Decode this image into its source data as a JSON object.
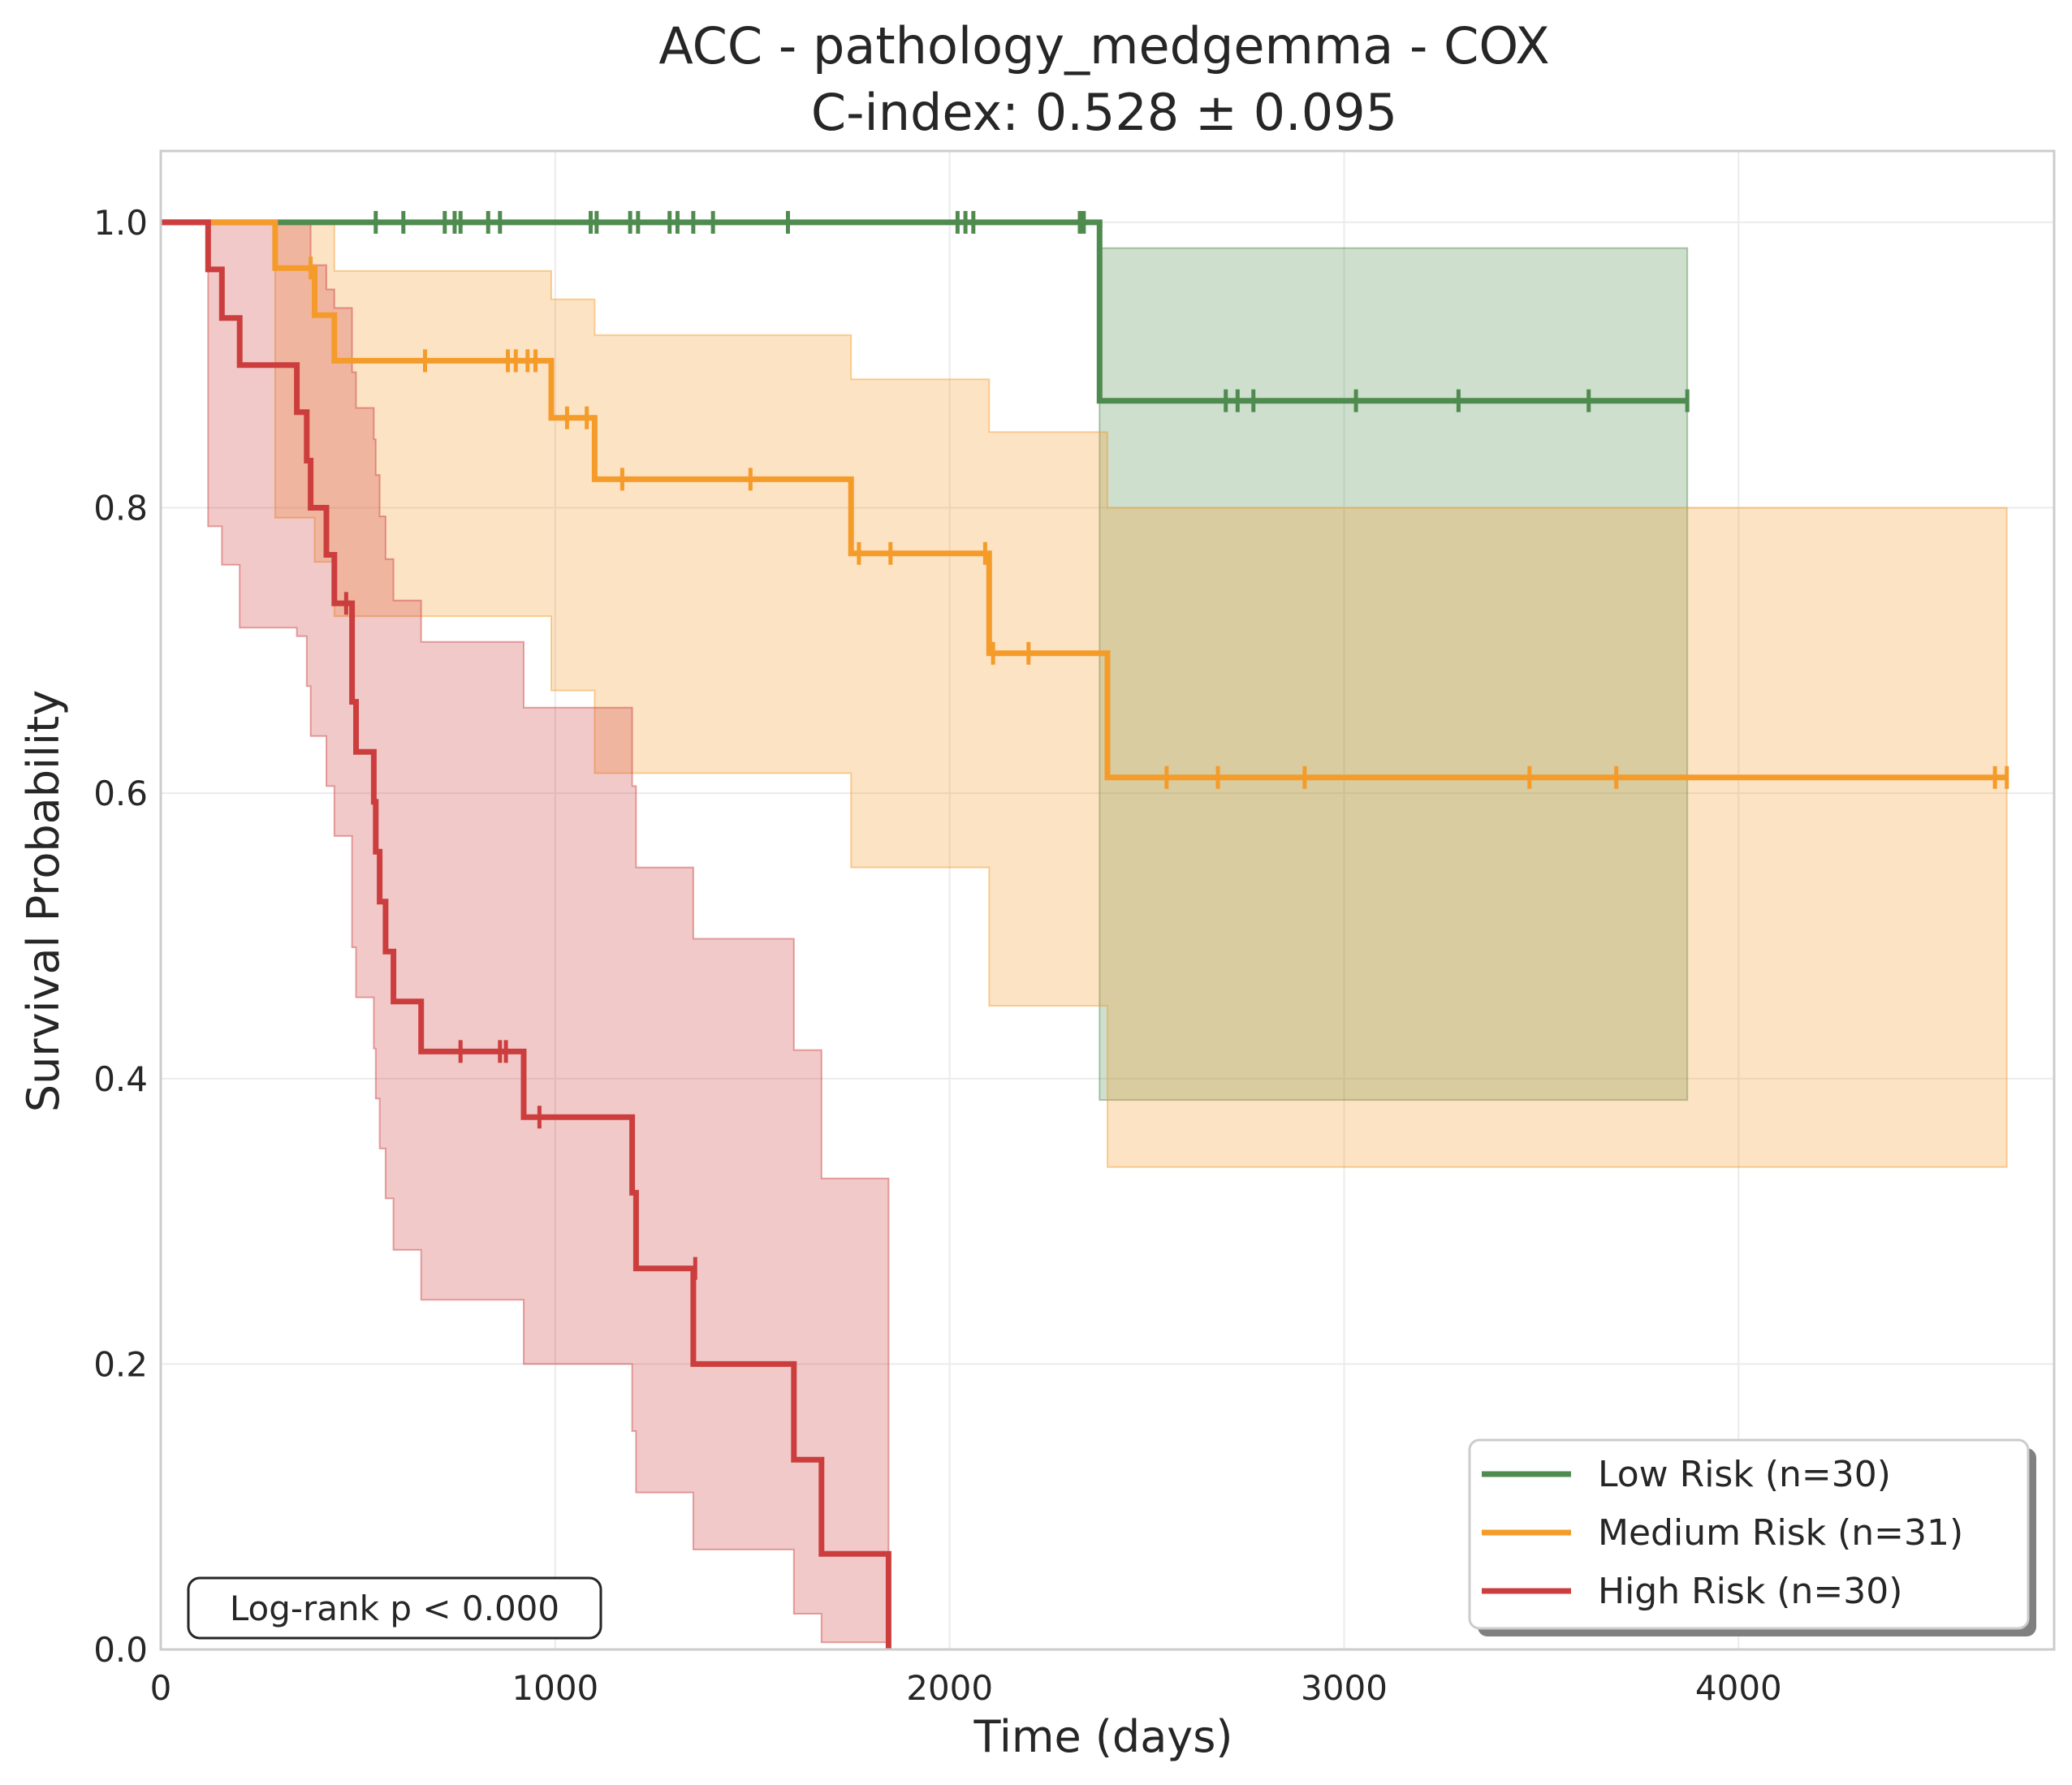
{
  "chart_data": {
    "type": "line",
    "subtype": "kaplan-meier",
    "title": "ACC - pathology_medgemma - COX",
    "subtitle": "C-index: 0.528 ± 0.095",
    "xlabel": "Time (days)",
    "ylabel": "Survival Probability",
    "xlim": [
      0,
      4800
    ],
    "ylim": [
      0,
      1.05
    ],
    "xticks": [
      0,
      1000,
      2000,
      3000,
      4000
    ],
    "xtick_labels": [
      "0",
      "1000",
      "2000",
      "3000",
      "4000"
    ],
    "yticks": [
      0.0,
      0.2,
      0.4,
      0.6,
      0.8,
      1.0
    ],
    "ytick_labels": [
      "0.0",
      "0.2",
      "0.4",
      "0.6",
      "0.8",
      "1.0"
    ],
    "grid": true,
    "legend_position": "lower-right",
    "annotation": "Log-rank p < 0.000",
    "series": [
      {
        "name": "Low Risk (n=30)",
        "color": "#4f8b4f",
        "steps": [
          [
            0,
            1.0
          ],
          [
            2380,
            1.0
          ],
          [
            2380,
            0.875
          ],
          [
            3870,
            0.875
          ]
        ],
        "ci_steps": [
          [
            2380,
            0.385,
            0.982
          ],
          [
            3870,
            0.385,
            0.982
          ]
        ],
        "censored": [
          [
            545,
            1.0
          ],
          [
            615,
            1.0
          ],
          [
            720,
            1.0
          ],
          [
            745,
            1.0
          ],
          [
            760,
            1.0
          ],
          [
            830,
            1.0
          ],
          [
            860,
            1.0
          ],
          [
            1090,
            1.0
          ],
          [
            1105,
            1.0
          ],
          [
            1190,
            1.0
          ],
          [
            1210,
            1.0
          ],
          [
            1290,
            1.0
          ],
          [
            1310,
            1.0
          ],
          [
            1350,
            1.0
          ],
          [
            1400,
            1.0
          ],
          [
            1590,
            1.0
          ],
          [
            2020,
            1.0
          ],
          [
            2040,
            1.0
          ],
          [
            2060,
            1.0
          ],
          [
            2330,
            1.0
          ],
          [
            2340,
            1.0
          ],
          [
            2700,
            0.875
          ],
          [
            2730,
            0.875
          ],
          [
            2770,
            0.875
          ],
          [
            3030,
            0.875
          ],
          [
            3290,
            0.875
          ],
          [
            3620,
            0.875
          ],
          [
            3870,
            0.875
          ]
        ]
      },
      {
        "name": "Medium Risk (n=31)",
        "color": "#f59b2a",
        "steps": [
          [
            0,
            1.0
          ],
          [
            290,
            1.0
          ],
          [
            290,
            0.968
          ],
          [
            390,
            0.968
          ],
          [
            390,
            0.935
          ],
          [
            440,
            0.935
          ],
          [
            440,
            0.903
          ],
          [
            990,
            0.903
          ],
          [
            990,
            0.863
          ],
          [
            1100,
            0.863
          ],
          [
            1100,
            0.82
          ],
          [
            1750,
            0.82
          ],
          [
            1750,
            0.768
          ],
          [
            2100,
            0.768
          ],
          [
            2100,
            0.698
          ],
          [
            2400,
            0.698
          ],
          [
            2400,
            0.611
          ],
          [
            4680,
            0.611
          ]
        ],
        "ci_steps": [
          [
            290,
            0.793,
            1.0
          ],
          [
            390,
            0.762,
            1.0
          ],
          [
            440,
            0.724,
            0.966
          ],
          [
            990,
            0.672,
            0.946
          ],
          [
            1100,
            0.614,
            0.921
          ],
          [
            1750,
            0.548,
            0.89
          ],
          [
            2100,
            0.451,
            0.853
          ],
          [
            2400,
            0.338,
            0.8
          ],
          [
            4680,
            0.338,
            0.8
          ]
        ],
        "censored": [
          [
            380,
            0.968
          ],
          [
            670,
            0.903
          ],
          [
            880,
            0.903
          ],
          [
            900,
            0.903
          ],
          [
            930,
            0.903
          ],
          [
            950,
            0.903
          ],
          [
            1030,
            0.863
          ],
          [
            1080,
            0.863
          ],
          [
            1170,
            0.82
          ],
          [
            1495,
            0.82
          ],
          [
            1770,
            0.768
          ],
          [
            1850,
            0.768
          ],
          [
            2090,
            0.768
          ],
          [
            2110,
            0.698
          ],
          [
            2200,
            0.698
          ],
          [
            2550,
            0.611
          ],
          [
            2680,
            0.611
          ],
          [
            2900,
            0.611
          ],
          [
            3470,
            0.611
          ],
          [
            3690,
            0.611
          ],
          [
            4650,
            0.611
          ],
          [
            4680,
            0.611
          ]
        ]
      },
      {
        "name": "High Risk (n=30)",
        "color": "#cc3e3e",
        "steps": [
          [
            0,
            1.0
          ],
          [
            120,
            1.0
          ],
          [
            120,
            0.967
          ],
          [
            155,
            0.967
          ],
          [
            155,
            0.933
          ],
          [
            200,
            0.933
          ],
          [
            200,
            0.9
          ],
          [
            345,
            0.9
          ],
          [
            345,
            0.867
          ],
          [
            370,
            0.867
          ],
          [
            370,
            0.833
          ],
          [
            380,
            0.833
          ],
          [
            380,
            0.8
          ],
          [
            420,
            0.8
          ],
          [
            420,
            0.767
          ],
          [
            440,
            0.767
          ],
          [
            440,
            0.733
          ],
          [
            485,
            0.733
          ],
          [
            485,
            0.664
          ],
          [
            495,
            0.664
          ],
          [
            495,
            0.629
          ],
          [
            540,
            0.629
          ],
          [
            540,
            0.594
          ],
          [
            545,
            0.594
          ],
          [
            545,
            0.559
          ],
          [
            555,
            0.559
          ],
          [
            555,
            0.524
          ],
          [
            570,
            0.524
          ],
          [
            570,
            0.489
          ],
          [
            590,
            0.489
          ],
          [
            590,
            0.454
          ],
          [
            660,
            0.454
          ],
          [
            660,
            0.419
          ],
          [
            920,
            0.419
          ],
          [
            920,
            0.373
          ],
          [
            1195,
            0.373
          ],
          [
            1195,
            0.32
          ],
          [
            1205,
            0.32
          ],
          [
            1205,
            0.267
          ],
          [
            1350,
            0.267
          ],
          [
            1350,
            0.2
          ],
          [
            1605,
            0.2
          ],
          [
            1605,
            0.133
          ],
          [
            1675,
            0.133
          ],
          [
            1675,
            0.067
          ],
          [
            1845,
            0.067
          ],
          [
            1845,
            0.0
          ]
        ],
        "ci_steps": [
          [
            120,
            0.787,
            1.0
          ],
          [
            155,
            0.76,
            1.0
          ],
          [
            200,
            0.716,
            1.0
          ],
          [
            345,
            0.71,
            1.0
          ],
          [
            370,
            0.675,
            1.0
          ],
          [
            380,
            0.64,
            0.97
          ],
          [
            420,
            0.605,
            0.953
          ],
          [
            440,
            0.57,
            0.94
          ],
          [
            485,
            0.492,
            0.895
          ],
          [
            495,
            0.457,
            0.87
          ],
          [
            540,
            0.421,
            0.848
          ],
          [
            545,
            0.386,
            0.823
          ],
          [
            555,
            0.351,
            0.794
          ],
          [
            570,
            0.316,
            0.764
          ],
          [
            590,
            0.28,
            0.735
          ],
          [
            660,
            0.245,
            0.706
          ],
          [
            920,
            0.2,
            0.66
          ],
          [
            1195,
            0.153,
            0.605
          ],
          [
            1205,
            0.11,
            0.548
          ],
          [
            1350,
            0.07,
            0.498
          ],
          [
            1605,
            0.025,
            0.42
          ],
          [
            1675,
            0.005,
            0.33
          ],
          [
            1845,
            0.005,
            0.33
          ]
        ],
        "censored": [
          [
            470,
            0.733
          ],
          [
            760,
            0.419
          ],
          [
            860,
            0.419
          ],
          [
            875,
            0.419
          ],
          [
            960,
            0.373
          ],
          [
            1355,
            0.267
          ]
        ]
      }
    ]
  }
}
